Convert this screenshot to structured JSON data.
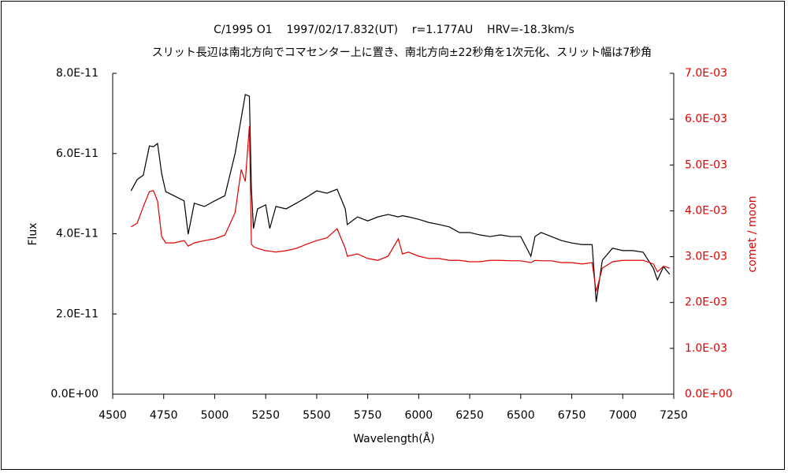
{
  "chart_data": {
    "type": "line",
    "title": "C/1995 O1    1997/02/17.832(UT)    r=1.177AU    HRV=-18.3km/s",
    "subtitle": "スリット長辺は南北方向でコマセンター上に置き、南北方向±22秒角を1次元化、スリット幅は7秒角",
    "xlabel": "Wavelength(Å)",
    "ylabel": "Flux",
    "y2label": "comet / moon",
    "x": [
      4590,
      4620,
      4650,
      4680,
      4700,
      4720,
      4740,
      4760,
      4800,
      4850,
      4870,
      4900,
      4950,
      5000,
      5050,
      5100,
      5130,
      5150,
      5170,
      5180,
      5190,
      5210,
      5250,
      5270,
      5300,
      5350,
      5400,
      5450,
      5500,
      5550,
      5600,
      5640,
      5650,
      5700,
      5750,
      5800,
      5850,
      5900,
      5920,
      5950,
      6000,
      6050,
      6100,
      6150,
      6200,
      6250,
      6300,
      6350,
      6400,
      6450,
      6500,
      6550,
      6570,
      6600,
      6650,
      6700,
      6750,
      6800,
      6850,
      6870,
      6900,
      6950,
      7000,
      7050,
      7100,
      7150,
      7170,
      7200,
      7230
    ],
    "series": [
      {
        "color": "#000000",
        "axis": "y",
        "values": [
          5.07e-11,
          5.35e-11,
          5.46e-11,
          6.19e-11,
          6.17e-11,
          6.25e-11,
          5.5e-11,
          5.05e-11,
          4.95e-11,
          4.82e-11,
          3.99e-11,
          4.76e-11,
          4.68e-11,
          4.82e-11,
          4.95e-11,
          6e-11,
          6.88e-11,
          7.47e-11,
          7.43e-11,
          5.1e-11,
          4.13e-11,
          4.62e-11,
          4.72e-11,
          4.13e-11,
          4.68e-11,
          4.62e-11,
          4.76e-11,
          4.91e-11,
          5.07e-11,
          5.01e-11,
          5.11e-11,
          4.62e-11,
          4.23e-11,
          4.42e-11,
          4.32e-11,
          4.42e-11,
          4.48e-11,
          4.42e-11,
          4.45e-11,
          4.42e-11,
          4.36e-11,
          4.28e-11,
          4.23e-11,
          4.17e-11,
          4.03e-11,
          4.03e-11,
          3.97e-11,
          3.93e-11,
          3.97e-11,
          3.93e-11,
          3.93e-11,
          3.44e-11,
          3.93e-11,
          4.03e-11,
          3.93e-11,
          3.83e-11,
          3.77e-11,
          3.73e-11,
          3.73e-11,
          2.3e-11,
          3.34e-11,
          3.64e-11,
          3.58e-11,
          3.58e-11,
          3.54e-11,
          3.14e-11,
          2.85e-11,
          3.18e-11,
          2.99e-11
        ]
      },
      {
        "color": "#e00000",
        "axis": "y2",
        "values": [
          0.00365,
          0.00373,
          0.00409,
          0.00442,
          0.00444,
          0.00421,
          0.00344,
          0.0033,
          0.0033,
          0.00335,
          0.00323,
          0.0033,
          0.00335,
          0.00339,
          0.00347,
          0.00396,
          0.0049,
          0.00464,
          0.00585,
          0.00327,
          0.00322,
          0.00318,
          0.00313,
          0.00312,
          0.0031,
          0.00313,
          0.00318,
          0.00327,
          0.00335,
          0.00341,
          0.00361,
          0.00318,
          0.00301,
          0.00306,
          0.00296,
          0.00292,
          0.00301,
          0.00339,
          0.00306,
          0.0031,
          0.00301,
          0.00296,
          0.00296,
          0.00292,
          0.00292,
          0.00289,
          0.00289,
          0.00292,
          0.00292,
          0.00291,
          0.00291,
          0.00287,
          0.00292,
          0.00291,
          0.00291,
          0.00287,
          0.00287,
          0.00284,
          0.00287,
          0.00224,
          0.00275,
          0.00289,
          0.00292,
          0.00292,
          0.00292,
          0.00284,
          0.00267,
          0.00279,
          0.00275
        ]
      }
    ],
    "xlim": [
      4500,
      7250
    ],
    "xticks": [
      4500,
      4750,
      5000,
      5250,
      5500,
      5750,
      6000,
      6250,
      6500,
      6750,
      7000,
      7250
    ],
    "ylim": [
      0,
      8e-11
    ],
    "yticks": [
      {
        "value": 0,
        "label": "0.0E+00"
      },
      {
        "value": 2e-11,
        "label": "2.0E-11"
      },
      {
        "value": 4e-11,
        "label": "4.0E-11"
      },
      {
        "value": 6e-11,
        "label": "6.0E-11"
      },
      {
        "value": 8e-11,
        "label": "8.0E-11"
      }
    ],
    "y2lim": [
      0,
      0.007
    ],
    "y2ticks": [
      {
        "value": 0,
        "label": "0.0E+00"
      },
      {
        "value": 0.001,
        "label": "1.0E-03"
      },
      {
        "value": 0.002,
        "label": "2.0E-03"
      },
      {
        "value": 0.003,
        "label": "3.0E-03"
      },
      {
        "value": 0.004,
        "label": "4.0E-03"
      },
      {
        "value": 0.005,
        "label": "5.0E-03"
      },
      {
        "value": 0.006,
        "label": "6.0E-03"
      },
      {
        "value": 0.007,
        "label": "7.0E-03"
      }
    ],
    "y2color": "#e00000",
    "grid": false
  }
}
